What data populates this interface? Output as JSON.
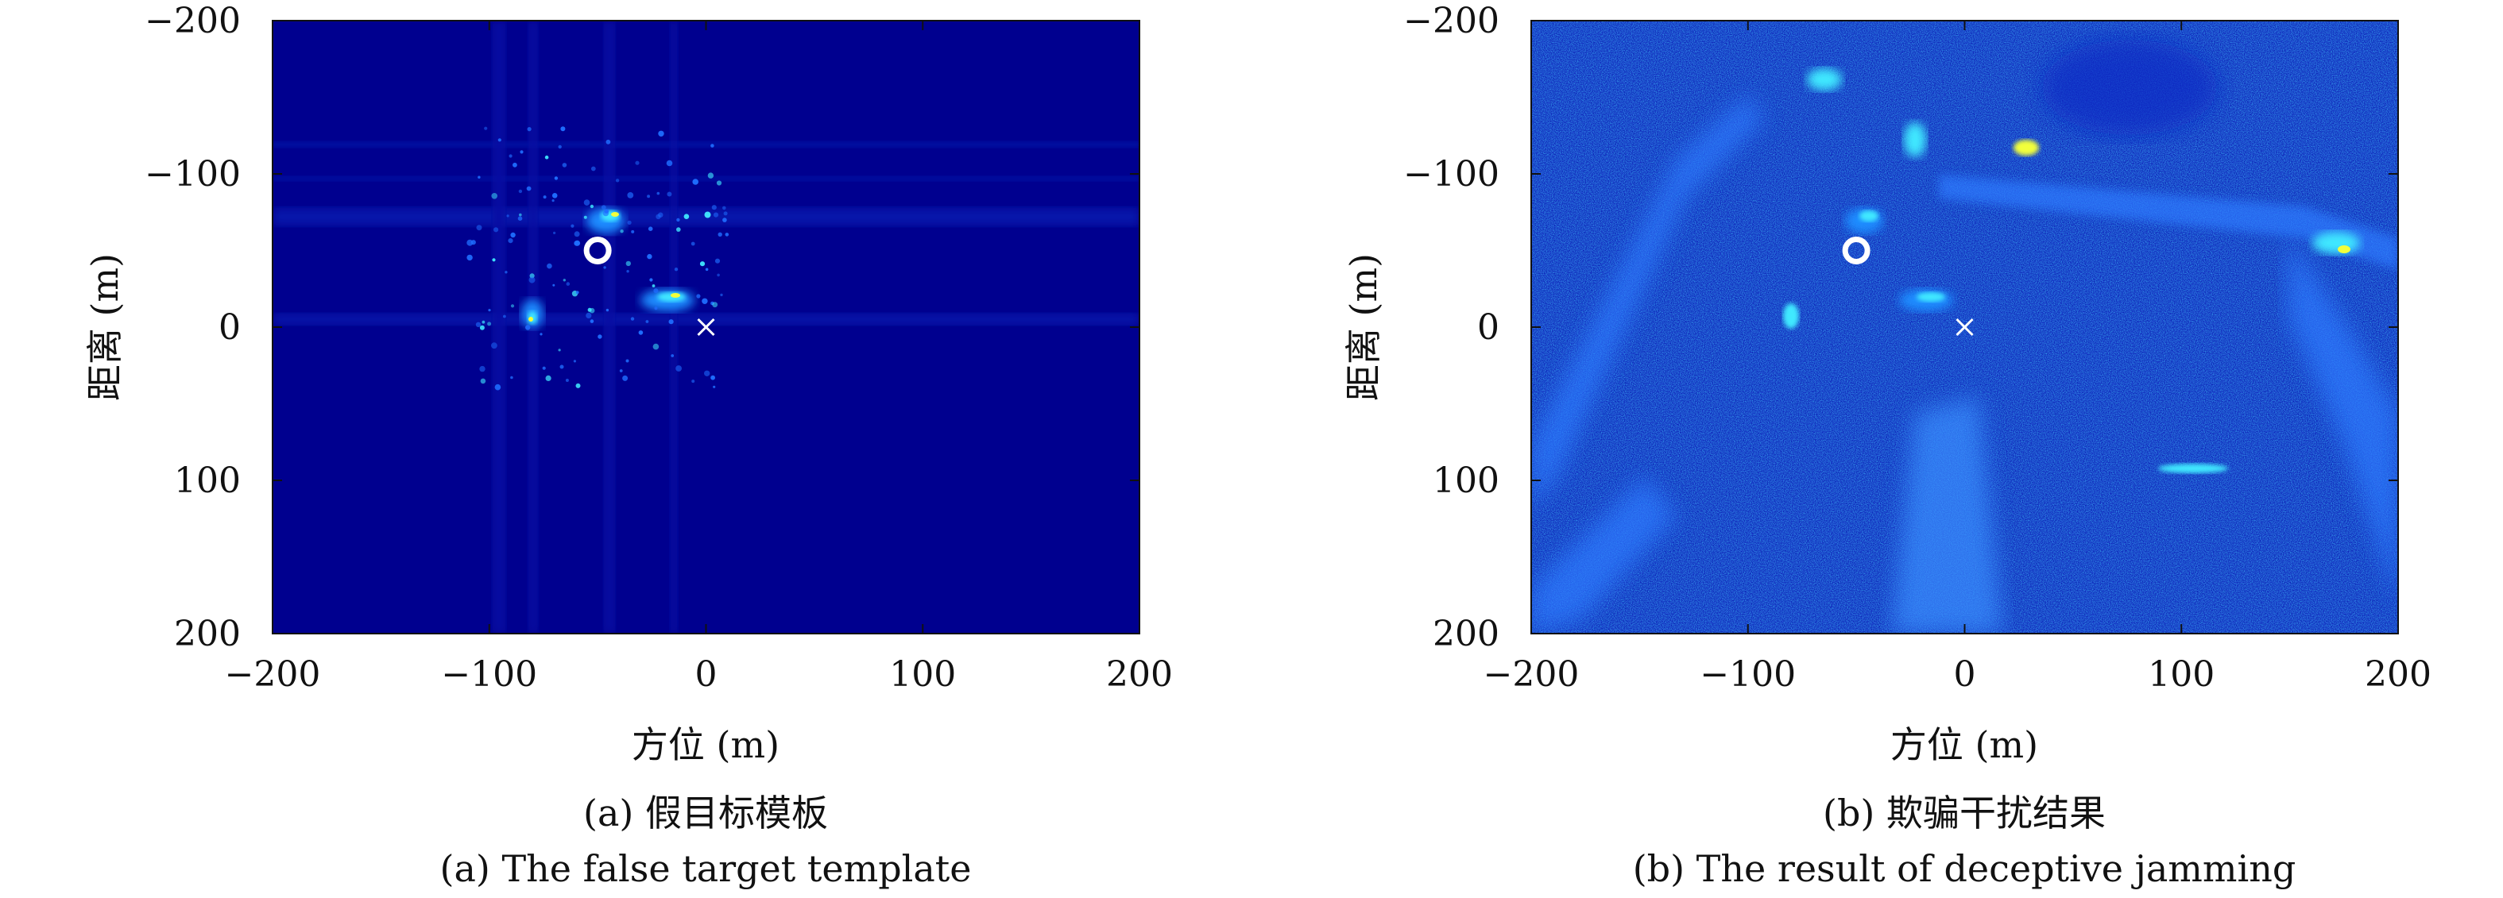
{
  "figure": {
    "panels": [
      {
        "caption_cn": "(a) 假目标模板",
        "caption_en": "(a) The false target template"
      },
      {
        "caption_cn": "(b) 欺骗干扰结果",
        "caption_en": "(b) The result of deceptive jamming"
      }
    ]
  },
  "colors": {
    "background_dark_blue": "#00008f",
    "background_noise_blue": "#1e3fd8",
    "hot_cyan": "#40e8ff",
    "hot_yellow": "#f2ff3a",
    "marker_white": "#ffffff"
  },
  "chart_data": [
    {
      "type": "heatmap",
      "xlabel": "方位 (m)",
      "ylabel": "距离 (m)",
      "xlim": [
        -200,
        200
      ],
      "ylim": [
        -200,
        200
      ],
      "y_reversed": true,
      "xticks": [
        -200,
        -100,
        0,
        100,
        200
      ],
      "yticks": [
        -200,
        -100,
        0,
        100,
        200
      ],
      "xtick_labels": [
        "−200",
        "−100",
        "0",
        "100",
        "200"
      ],
      "ytick_labels": [
        "−200",
        "−100",
        "0",
        "100",
        "200"
      ],
      "colormap": "jet",
      "grid": false,
      "markers": [
        {
          "symbol": "circle",
          "x": -50,
          "y": -50
        },
        {
          "symbol": "cross",
          "x": 0,
          "y": 0
        }
      ]
    },
    {
      "type": "heatmap",
      "xlabel": "方位 (m)",
      "ylabel": "距离 (m)",
      "xlim": [
        -200,
        200
      ],
      "ylim": [
        -200,
        200
      ],
      "y_reversed": true,
      "xticks": [
        -200,
        -100,
        0,
        100,
        200
      ],
      "yticks": [
        -200,
        -100,
        0,
        100,
        200
      ],
      "xtick_labels": [
        "−200",
        "−100",
        "0",
        "100",
        "200"
      ],
      "ytick_labels": [
        "−200",
        "−100",
        "0",
        "100",
        "200"
      ],
      "colormap": "jet",
      "grid": false,
      "markers": [
        {
          "symbol": "circle",
          "x": -50,
          "y": -50
        },
        {
          "symbol": "cross",
          "x": 0,
          "y": 0
        }
      ]
    }
  ]
}
